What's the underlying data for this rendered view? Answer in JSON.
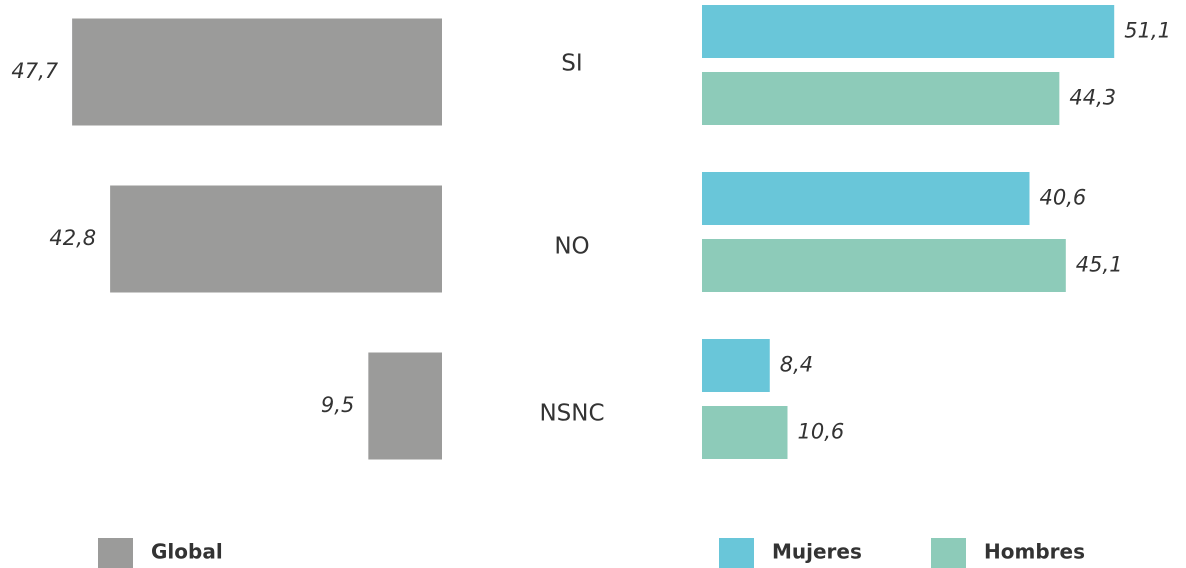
{
  "chart_data": [
    {
      "type": "bar",
      "orientation": "horizontal",
      "direction": "leftward",
      "categories": [
        "SI",
        "NO",
        "NSNC"
      ],
      "xlim": [
        0,
        57
      ],
      "series": [
        {
          "name": "Global",
          "color": "#9b9b9a",
          "values": [
            47.7,
            42.8,
            9.5
          ],
          "value_labels": [
            "47,7",
            "42,8",
            "9,5"
          ]
        }
      ],
      "legend": "bottom"
    },
    {
      "type": "bar",
      "orientation": "horizontal",
      "direction": "rightward",
      "xlim": [
        0,
        60
      ],
      "series": [
        {
          "name": "Mujeres",
          "color": "#69c6d9",
          "values": [
            51.1,
            40.6,
            8.4
          ],
          "value_labels": [
            "51,1",
            "40,6",
            "8,4"
          ]
        },
        {
          "name": "Hombres",
          "color": "#8dcbb9",
          "values": [
            44.3,
            45.1,
            10.6
          ],
          "value_labels": [
            "44,3",
            "45,1",
            "10,6"
          ]
        }
      ],
      "legend": "bottom"
    }
  ]
}
